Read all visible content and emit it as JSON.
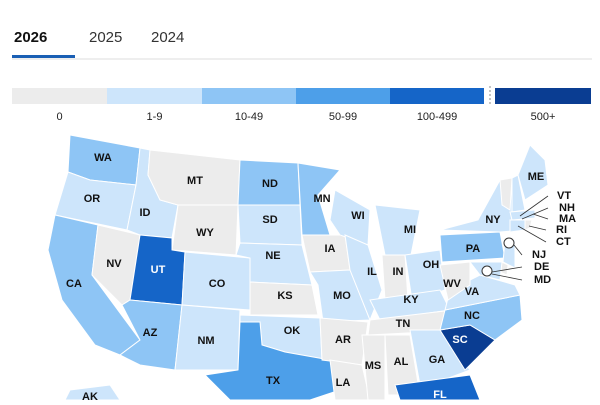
{
  "tabs": [
    "2026",
    "2025",
    "2024"
  ],
  "active_tab": 0,
  "legend": [
    {
      "label": "0",
      "color": "#ececec"
    },
    {
      "label": "1-9",
      "color": "#cde5fb"
    },
    {
      "label": "10-49",
      "color": "#8ec5f5"
    },
    {
      "label": "50-99",
      "color": "#4d9fe9"
    },
    {
      "label": "100-499",
      "color": "#1565c8"
    },
    {
      "label": "500+",
      "color": "#0a3d92"
    }
  ],
  "states": [
    {
      "abbr": "WA",
      "bin": 2
    },
    {
      "abbr": "OR",
      "bin": 1
    },
    {
      "abbr": "CA",
      "bin": 2
    },
    {
      "abbr": "NV",
      "bin": 0
    },
    {
      "abbr": "ID",
      "bin": 1
    },
    {
      "abbr": "MT",
      "bin": 0
    },
    {
      "abbr": "WY",
      "bin": 0
    },
    {
      "abbr": "UT",
      "bin": 4
    },
    {
      "abbr": "CO",
      "bin": 1
    },
    {
      "abbr": "AZ",
      "bin": 2
    },
    {
      "abbr": "NM",
      "bin": 1
    },
    {
      "abbr": "ND",
      "bin": 2
    },
    {
      "abbr": "SD",
      "bin": 1
    },
    {
      "abbr": "NE",
      "bin": 1
    },
    {
      "abbr": "KS",
      "bin": 0
    },
    {
      "abbr": "OK",
      "bin": 1
    },
    {
      "abbr": "TX",
      "bin": 3
    },
    {
      "abbr": "MN",
      "bin": 2
    },
    {
      "abbr": "IA",
      "bin": 0
    },
    {
      "abbr": "MO",
      "bin": 1
    },
    {
      "abbr": "AR",
      "bin": 0
    },
    {
      "abbr": "LA",
      "bin": 0
    },
    {
      "abbr": "WI",
      "bin": 1
    },
    {
      "abbr": "IL",
      "bin": 1
    },
    {
      "abbr": "MI",
      "bin": 1
    },
    {
      "abbr": "IN",
      "bin": 0
    },
    {
      "abbr": "OH",
      "bin": 1
    },
    {
      "abbr": "KY",
      "bin": 1
    },
    {
      "abbr": "TN",
      "bin": 0
    },
    {
      "abbr": "MS",
      "bin": 0
    },
    {
      "abbr": "AL",
      "bin": 0
    },
    {
      "abbr": "GA",
      "bin": 1
    },
    {
      "abbr": "FL",
      "bin": 4
    },
    {
      "abbr": "SC",
      "bin": 5
    },
    {
      "abbr": "NC",
      "bin": 2
    },
    {
      "abbr": "VA",
      "bin": 1
    },
    {
      "abbr": "WV",
      "bin": 0
    },
    {
      "abbr": "PA",
      "bin": 2
    },
    {
      "abbr": "NY",
      "bin": 1
    },
    {
      "abbr": "VT",
      "bin": 0
    },
    {
      "abbr": "NH",
      "bin": 1
    },
    {
      "abbr": "ME",
      "bin": 1
    },
    {
      "abbr": "MA",
      "bin": 1
    },
    {
      "abbr": "CT",
      "bin": 1
    },
    {
      "abbr": "RI",
      "bin": 0
    },
    {
      "abbr": "NJ",
      "bin": 1
    },
    {
      "abbr": "DE",
      "bin": 0
    },
    {
      "abbr": "MD",
      "bin": 1
    },
    {
      "abbr": "AK",
      "bin": 1
    }
  ]
}
